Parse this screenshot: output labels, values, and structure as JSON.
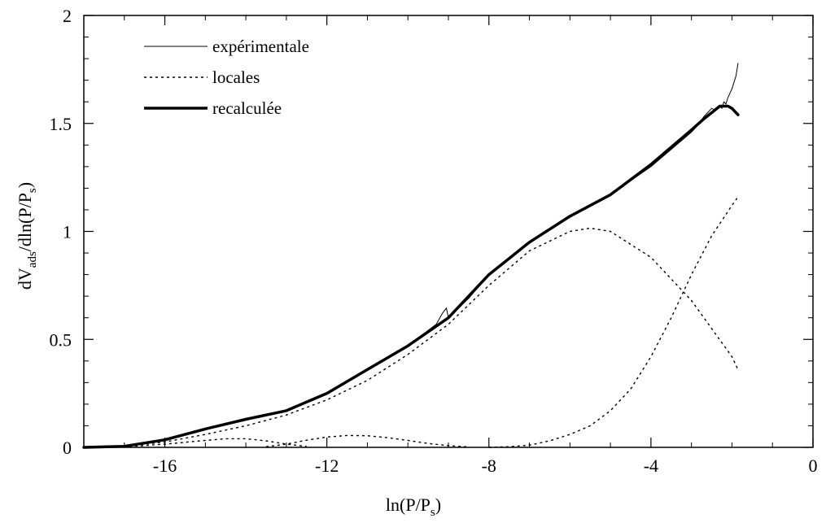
{
  "chart_data": {
    "type": "line",
    "xlabel": "ln(P/P",
    "xlabel_sub": "s",
    "xlabel_end": ")",
    "ylabel_parts": [
      "dV",
      "ads",
      "/dln(P/P",
      "s",
      ")"
    ],
    "xlim": [
      -18,
      0
    ],
    "ylim": [
      0,
      2
    ],
    "x_ticks": [
      -16,
      -12,
      -8,
      -4,
      0
    ],
    "x_tick_labels": [
      "-16",
      "-12",
      "-8",
      "-4",
      "0"
    ],
    "y_ticks": [
      0,
      0.5,
      1,
      1.5,
      2
    ],
    "y_tick_labels": [
      "0",
      "0.5",
      "1",
      "1.5",
      "2"
    ],
    "legend_position": "top-left",
    "series": [
      {
        "name": "expérimentale",
        "style": "solid-thin",
        "x": [
          -18,
          -17,
          -16,
          -15,
          -14,
          -13,
          -12,
          -11,
          -10,
          -9.3,
          -9.15,
          -9.05,
          -9,
          -8.5,
          -8,
          -7,
          -6,
          -5,
          -4,
          -3.5,
          -3,
          -2.8,
          -2.7,
          -2.6,
          -2.5,
          -2.4,
          -2.3,
          -2.25,
          -2.2,
          -2.15,
          -2.1,
          -2.05,
          -2.0,
          -1.95,
          -1.9,
          -1.85
        ],
        "y": [
          0.0,
          0.005,
          0.035,
          0.085,
          0.13,
          0.17,
          0.25,
          0.36,
          0.47,
          0.57,
          0.62,
          0.645,
          0.6,
          0.69,
          0.8,
          0.95,
          1.07,
          1.17,
          1.3,
          1.38,
          1.46,
          1.5,
          1.53,
          1.55,
          1.57,
          1.56,
          1.58,
          1.57,
          1.6,
          1.59,
          1.62,
          1.64,
          1.66,
          1.69,
          1.72,
          1.78
        ]
      },
      {
        "name": "locales",
        "style": "dotted",
        "components": [
          {
            "x": [
              -18,
              -17,
              -16,
              -15,
              -14.5,
              -14,
              -13.5,
              -13,
              -12.5
            ],
            "y": [
              0,
              0.002,
              0.015,
              0.032,
              0.04,
              0.04,
              0.03,
              0.015,
              0.004
            ]
          },
          {
            "x": [
              -13.5,
              -13,
              -12.5,
              -12,
              -11.5,
              -11,
              -10.5,
              -10,
              -9.5,
              -9,
              -8.5
            ],
            "y": [
              0.003,
              0.015,
              0.033,
              0.048,
              0.055,
              0.054,
              0.045,
              0.032,
              0.018,
              0.008,
              0.002
            ]
          },
          {
            "x": [
              -18,
              -17,
              -16,
              -15,
              -14,
              -13,
              -12,
              -11,
              -10,
              -9,
              -8,
              -7,
              -6,
              -5.5,
              -5,
              -4,
              -3,
              -2,
              -1.85
            ],
            "y": [
              0,
              0.005,
              0.025,
              0.06,
              0.1,
              0.15,
              0.22,
              0.31,
              0.43,
              0.57,
              0.75,
              0.91,
              1.0,
              1.015,
              1.0,
              0.88,
              0.68,
              0.42,
              0.36
            ]
          },
          {
            "x": [
              -8,
              -7.5,
              -7,
              -6.5,
              -6,
              -5.5,
              -5,
              -4.5,
              -4,
              -3.5,
              -3,
              -2.5,
              -2,
              -1.85
            ],
            "y": [
              0.0,
              0.003,
              0.01,
              0.03,
              0.06,
              0.1,
              0.17,
              0.27,
              0.42,
              0.6,
              0.8,
              0.98,
              1.12,
              1.16
            ]
          }
        ]
      },
      {
        "name": "recalculée",
        "style": "solid-thick",
        "x": [
          -18,
          -17,
          -16,
          -15,
          -14,
          -13,
          -12,
          -11,
          -10,
          -9,
          -8,
          -7,
          -6,
          -5,
          -4,
          -3.5,
          -3,
          -2.7,
          -2.5,
          -2.3,
          -2.1,
          -2.0,
          -1.9,
          -1.85
        ],
        "y": [
          0.0,
          0.005,
          0.035,
          0.085,
          0.13,
          0.17,
          0.25,
          0.36,
          0.47,
          0.6,
          0.8,
          0.95,
          1.07,
          1.17,
          1.31,
          1.39,
          1.47,
          1.52,
          1.55,
          1.58,
          1.58,
          1.57,
          1.55,
          1.54
        ]
      }
    ]
  }
}
